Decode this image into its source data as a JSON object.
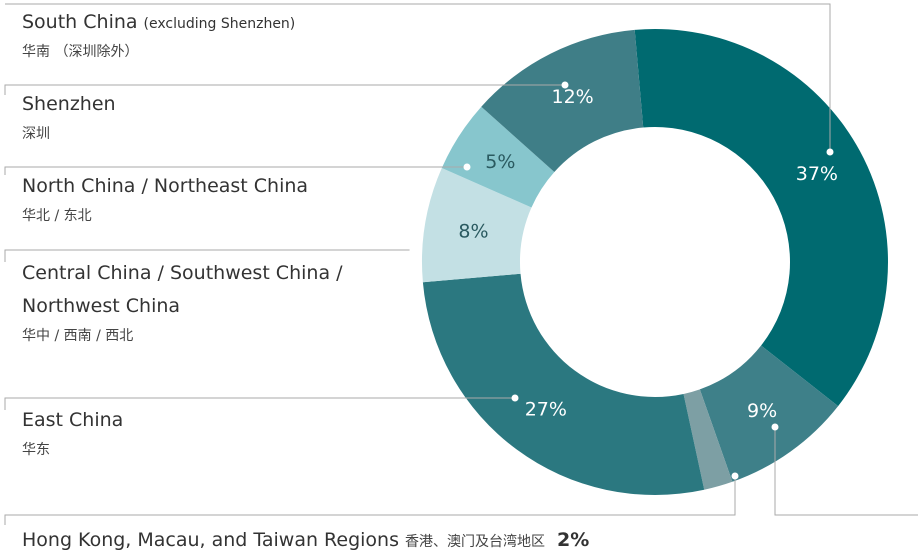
{
  "chart_data": {
    "type": "pie",
    "donut": true,
    "categories": [
      "South China",
      null,
      "Hong Kong, Macau, and Taiwan Regions",
      "East China",
      "Central China / Southwest China / Northwest China",
      "North China / Northeast China",
      "Shenzhen"
    ],
    "category_notes": [
      "(excluding Shenzhen)",
      null,
      null,
      null,
      null,
      null,
      null
    ],
    "category_labels_zh": [
      "华南 （深圳除外）",
      null,
      "香港、澳门及台湾地区",
      "华东",
      "华中 / 西南 / 西北",
      "华北 / 东北",
      "深圳"
    ],
    "values": [
      37,
      9,
      2,
      27,
      8,
      5,
      12
    ],
    "value_labels": [
      "37%",
      "9%",
      "2%",
      "27%",
      "8%",
      "5%",
      "12%"
    ],
    "colors": [
      "#006a70",
      "#3e8089",
      "#7d9fa4",
      "#2b7880",
      "#c3e0e4",
      "#87c6cd",
      "#3f7e87"
    ]
  }
}
